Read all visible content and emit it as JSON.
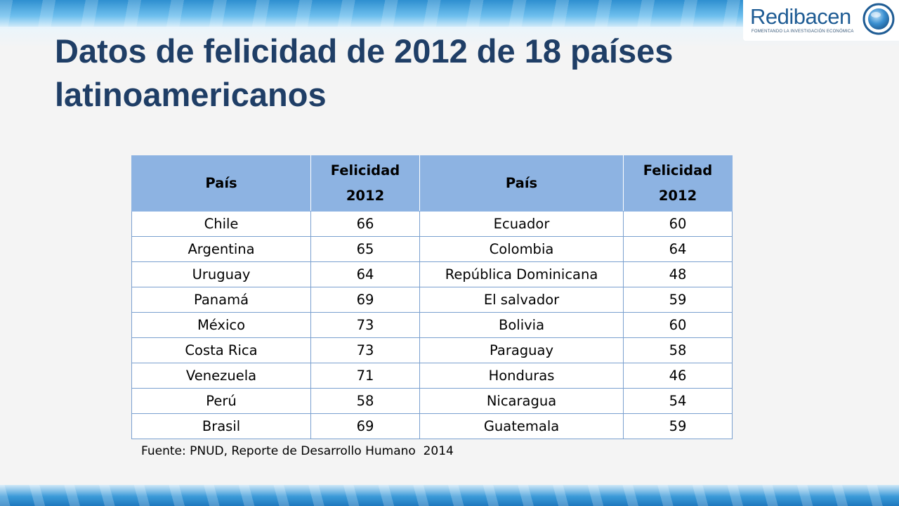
{
  "slide": {
    "title": "Datos de felicidad de 2012 de 18 países latinoamericanos",
    "source": "Fuente: PNUD, Reporte de Desarrollo Humano  2014"
  },
  "logo": {
    "name": "Redibacen",
    "tagline": "FOMENTANDO LA INVESTIGACIÓN ECONÓMICA",
    "icon": "globe-icon"
  },
  "table": {
    "headers": [
      "País",
      "Felicidad 2012",
      "País",
      "Felicidad 2012"
    ],
    "rows": [
      [
        "Chile",
        "66",
        "Ecuador",
        "60"
      ],
      [
        "Argentina",
        "65",
        "Colombia",
        "64"
      ],
      [
        "Uruguay",
        "64",
        "República Dominicana",
        "48"
      ],
      [
        "Panamá",
        "69",
        "El salvador",
        "59"
      ],
      [
        "México",
        "73",
        "Bolivia",
        "60"
      ],
      [
        "Costa Rica",
        "73",
        "Paraguay",
        "58"
      ],
      [
        "Venezuela",
        "71",
        "Honduras",
        "46"
      ],
      [
        "Perú",
        "58",
        "Nicaragua",
        "54"
      ],
      [
        "Brasil",
        "69",
        "Guatemala",
        "59"
      ]
    ]
  },
  "colors": {
    "title": "#1f3e66",
    "header_fill": "#8db3e2",
    "accent_blue": "#2e8fd0",
    "logo_text": "#1f5c94"
  }
}
